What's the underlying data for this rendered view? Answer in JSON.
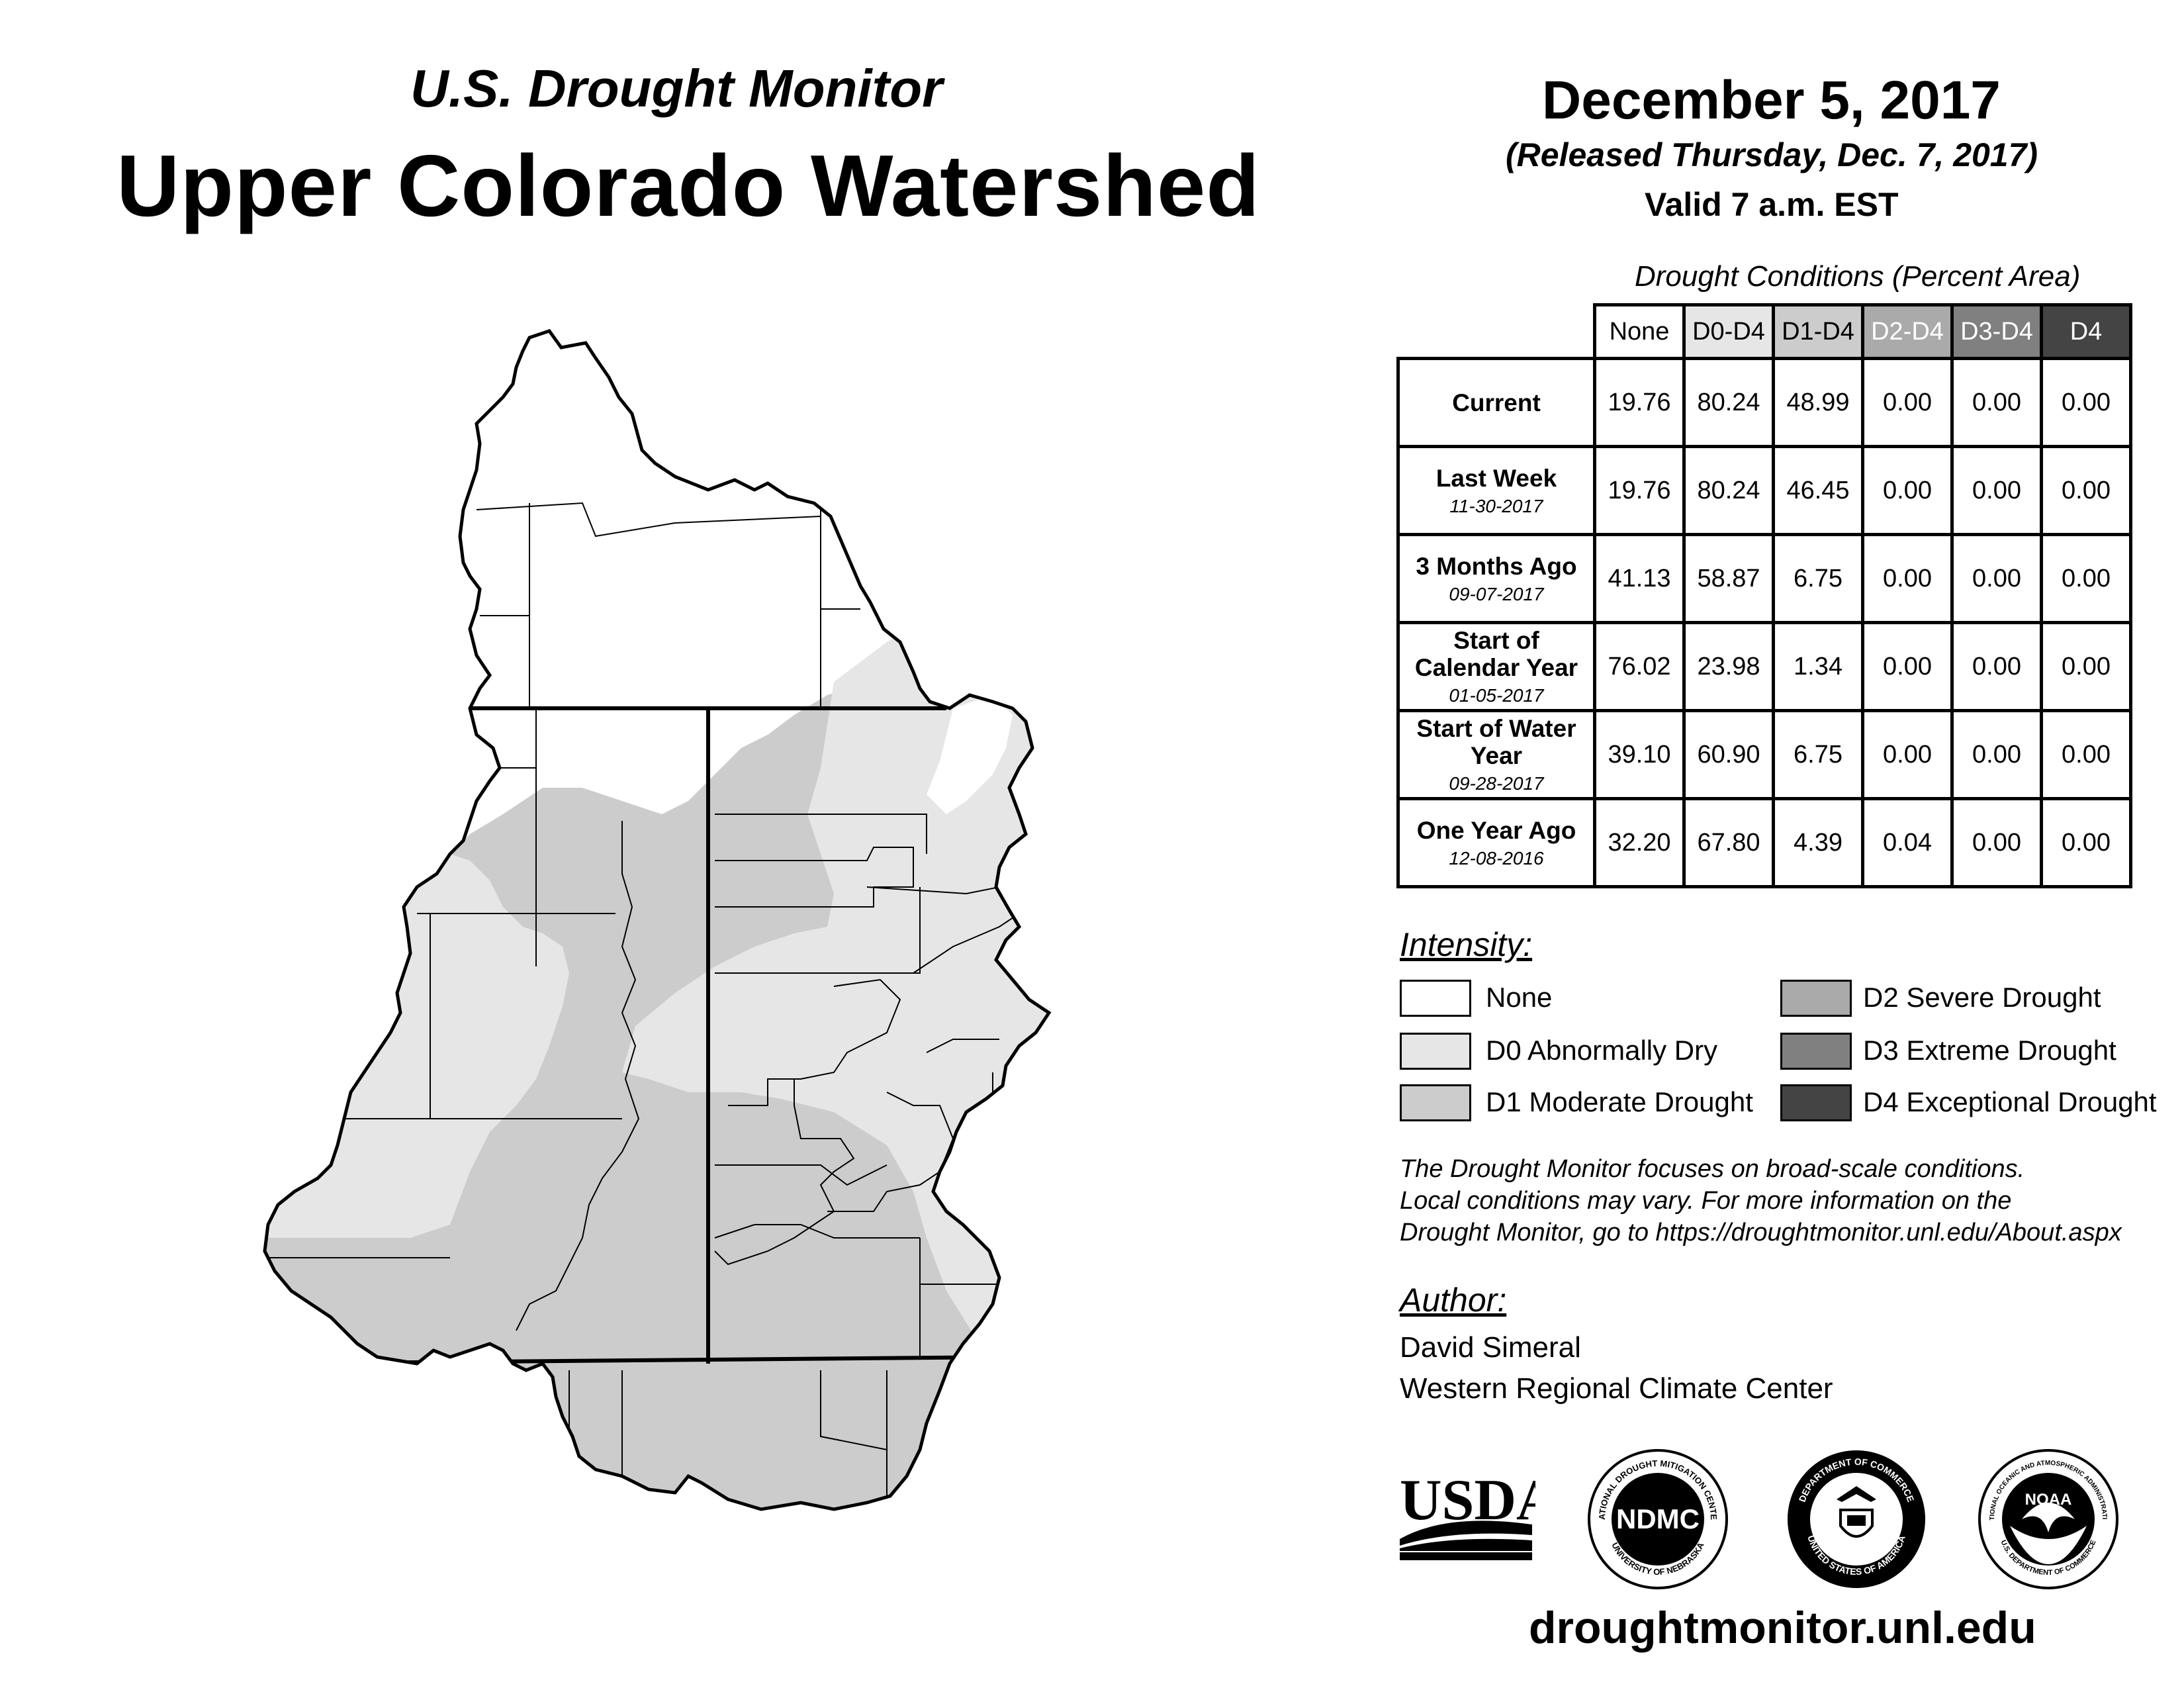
{
  "header": {
    "subtitle": "U.S. Drought Monitor",
    "title": "Upper Colorado Watershed",
    "date": "December 5, 2017",
    "released": "(Released Thursday, Dec. 7, 2017)",
    "valid": "Valid 7 a.m. EST"
  },
  "table": {
    "caption": "Drought Conditions (Percent Area)",
    "columns": [
      "None",
      "D0-D4",
      "D1-D4",
      "D2-D4",
      "D3-D4",
      "D4"
    ],
    "rows": [
      {
        "label": "Current",
        "date": "",
        "values": [
          "19.76",
          "80.24",
          "48.99",
          "0.00",
          "0.00",
          "0.00"
        ]
      },
      {
        "label": "Last Week",
        "date": "11-30-2017",
        "values": [
          "19.76",
          "80.24",
          "46.45",
          "0.00",
          "0.00",
          "0.00"
        ]
      },
      {
        "label": "3 Months Ago",
        "date": "09-07-2017",
        "values": [
          "41.13",
          "58.87",
          "6.75",
          "0.00",
          "0.00",
          "0.00"
        ]
      },
      {
        "label": "Start of Calendar Year",
        "date": "01-05-2017",
        "values": [
          "76.02",
          "23.98",
          "1.34",
          "0.00",
          "0.00",
          "0.00"
        ]
      },
      {
        "label": "Start of Water Year",
        "date": "09-28-2017",
        "values": [
          "39.10",
          "60.90",
          "6.75",
          "0.00",
          "0.00",
          "0.00"
        ]
      },
      {
        "label": "One Year Ago",
        "date": "12-08-2016",
        "values": [
          "32.20",
          "67.80",
          "4.39",
          "0.04",
          "0.00",
          "0.00"
        ]
      }
    ]
  },
  "legend": {
    "heading": "Intensity:",
    "items": [
      {
        "label": "None",
        "color": "#ffffff"
      },
      {
        "label": "D0 Abnormally Dry",
        "color": "#e6e6e6"
      },
      {
        "label": "D1 Moderate Drought",
        "color": "#cccccc"
      },
      {
        "label": "D2 Severe Drought",
        "color": "#aaaaaa"
      },
      {
        "label": "D3 Extreme Drought",
        "color": "#808080"
      },
      {
        "label": "D4 Exceptional Drought",
        "color": "#444444"
      }
    ]
  },
  "note": {
    "line1": "The Drought Monitor focuses on broad-scale conditions.",
    "line2": "Local conditions may vary. For more information on the",
    "line3": "Drought Monitor, go to https://droughtmonitor.unl.edu/About.aspx"
  },
  "author": {
    "heading": "Author:",
    "name": "David Simeral",
    "org": "Western Regional Climate Center"
  },
  "logos": {
    "usda": "USDA",
    "ndmc": "NDMC",
    "ndmc_ring_top": "NATIONAL DROUGHT MITIGATION CENTER",
    "ndmc_ring_bottom": "UNIVERSITY OF NEBRASKA",
    "doc_ring_top": "DEPARTMENT OF COMMERCE",
    "doc_ring_bottom": "UNITED STATES OF AMERICA",
    "noaa": "NOAA",
    "noaa_ring_top": "NATIONAL OCEANIC AND ATMOSPHERIC ADMINISTRATION",
    "noaa_ring_bottom": "U.S. DEPARTMENT OF COMMERCE"
  },
  "footer": {
    "url": "droughtmonitor.unl.edu"
  }
}
